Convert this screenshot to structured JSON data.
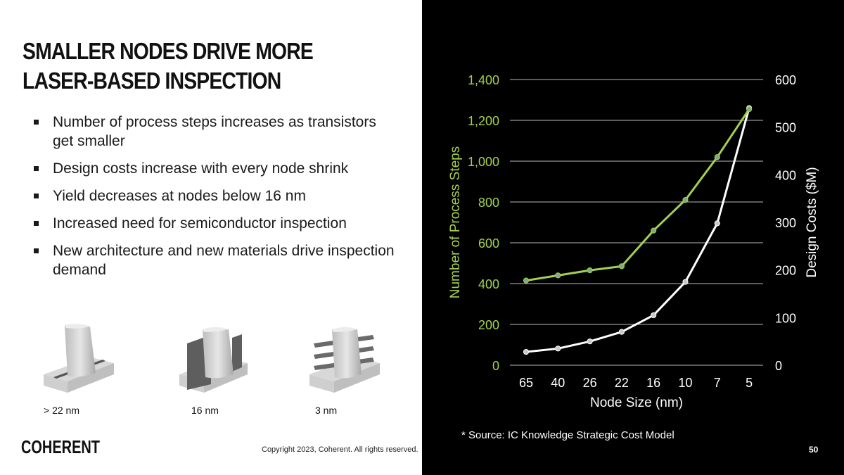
{
  "slide": {
    "title_lines": [
      "SMALLER NODES DRIVE MORE",
      "LASER-BASED INSPECTION"
    ],
    "bullets": [
      "Number of process steps increases as transistors get smaller",
      "Design costs increase with every node shrink",
      "Yield decreases at nodes below 16 nm",
      "Increased need for semiconductor inspection",
      "New architecture and new materials drive inspection demand"
    ],
    "device_labels": [
      "> 22 nm",
      "16 nm",
      "3 nm"
    ],
    "logo_text": "COHERENT",
    "copyright": "Copyright 2023, Coherent. All rights reserved.",
    "source": "* Source: IC Knowledge Strategic Cost Model",
    "page_number": "50"
  },
  "colors": {
    "green": "#a3d14c",
    "white_line": "#ffffff",
    "background_right": "#000000"
  },
  "chart_data": {
    "type": "line",
    "xlabel": "Node Size (nm)",
    "ylabel_left": "Number of Process Steps",
    "ylabel_right": "Design Costs ($M)",
    "categories": [
      "65",
      "40",
      "26",
      "22",
      "16",
      "10",
      "7",
      "5"
    ],
    "ylim_left": [
      0,
      1400
    ],
    "ylim_right": [
      0,
      600
    ],
    "left_ticks": [
      "0",
      "200",
      "400",
      "600",
      "800",
      "1,000",
      "1,200",
      "1,400"
    ],
    "right_ticks": [
      "0",
      "100",
      "200",
      "300",
      "400",
      "500",
      "600"
    ],
    "grid": true,
    "series": [
      {
        "name": "Number of Process Steps",
        "axis": "left",
        "color": "#a3d14c",
        "values": [
          415,
          440,
          465,
          485,
          660,
          810,
          1020,
          1255
        ]
      },
      {
        "name": "Design Costs ($M)",
        "axis": "right",
        "color": "#ffffff",
        "values": [
          28,
          35,
          50,
          70,
          105,
          175,
          298,
          540
        ]
      }
    ]
  }
}
